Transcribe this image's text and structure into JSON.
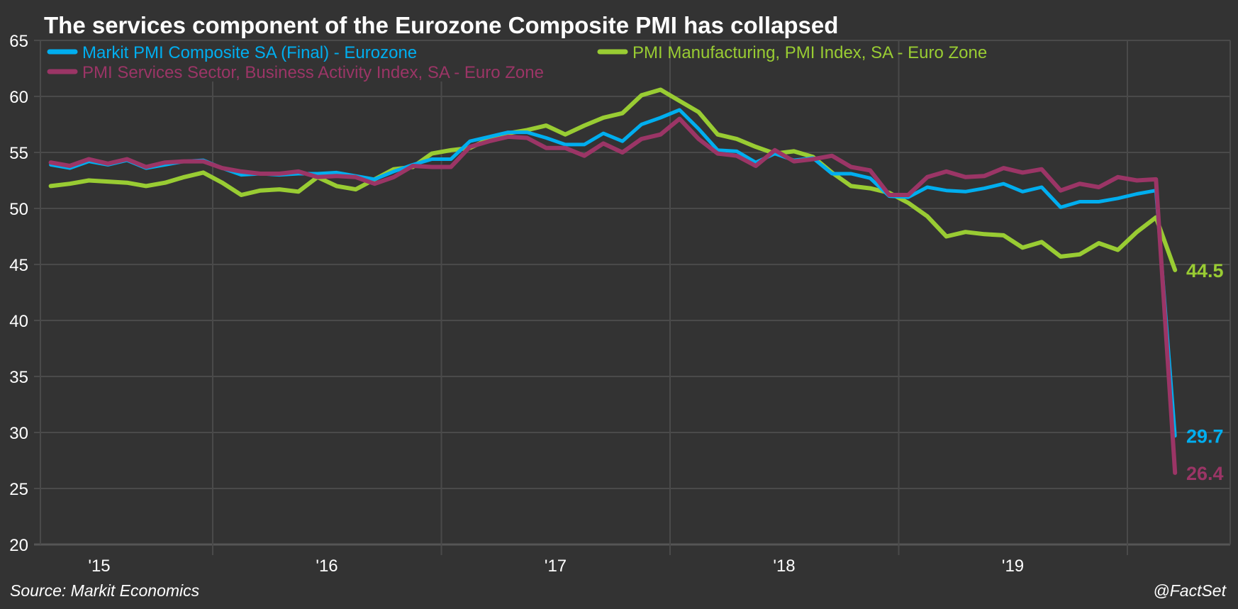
{
  "chart_data": {
    "type": "line",
    "title": "The services component of the Eurozone Composite PMI has collapsed",
    "xlabel": "",
    "ylabel": "",
    "ylim": [
      20,
      65
    ],
    "yticks": [
      20,
      25,
      30,
      35,
      40,
      45,
      50,
      55,
      60,
      65
    ],
    "ytick_labels": [
      "20",
      "25",
      "30",
      "35",
      "40",
      "45",
      "50",
      "55",
      "60",
      "65"
    ],
    "x_start": "2015-04",
    "x_end": "2020-03",
    "frequency": "monthly",
    "xtick_labels": [
      "'15",
      "'16",
      "'17",
      "'18",
      "'19"
    ],
    "grid": true,
    "legend_position": "top-left",
    "series": [
      {
        "name": "Markit PMI Composite SA (Final) - Eurozone",
        "color": "#00AEEF",
        "end_label": "29.7",
        "values": [
          53.9,
          53.6,
          54.2,
          53.9,
          54.3,
          53.6,
          53.9,
          54.2,
          54.3,
          53.6,
          53.0,
          53.1,
          53.0,
          53.1,
          53.1,
          53.2,
          52.9,
          52.6,
          53.3,
          53.9,
          54.4,
          54.4,
          56.0,
          56.4,
          56.8,
          56.8,
          56.3,
          55.7,
          55.7,
          56.7,
          56.0,
          57.5,
          58.1,
          58.8,
          57.1,
          55.2,
          55.1,
          54.1,
          54.9,
          54.3,
          54.5,
          53.1,
          53.1,
          52.7,
          51.1,
          51.0,
          51.9,
          51.6,
          51.5,
          51.8,
          52.2,
          51.5,
          51.9,
          50.1,
          50.6,
          50.6,
          50.9,
          51.3,
          51.6,
          29.7
        ]
      },
      {
        "name": "PMI Manufacturing, PMI Index, SA - Euro Zone",
        "color": "#99CC33",
        "end_label": "44.5",
        "values": [
          52.0,
          52.2,
          52.5,
          52.4,
          52.3,
          52.0,
          52.3,
          52.8,
          53.2,
          52.3,
          51.2,
          51.6,
          51.7,
          51.5,
          52.8,
          52.0,
          51.7,
          52.6,
          53.5,
          53.7,
          54.9,
          55.2,
          55.4,
          56.2,
          56.7,
          57.0,
          57.4,
          56.6,
          57.4,
          58.1,
          58.5,
          60.1,
          60.6,
          59.6,
          58.6,
          56.6,
          56.2,
          55.5,
          54.9,
          55.1,
          54.6,
          53.2,
          52.0,
          51.8,
          51.4,
          50.5,
          49.3,
          47.5,
          47.9,
          47.7,
          47.6,
          46.5,
          47.0,
          45.7,
          45.9,
          46.9,
          46.3,
          47.9,
          49.2,
          44.5
        ]
      },
      {
        "name": "PMI Services Sector, Business Activity Index, SA - Euro Zone",
        "color": "#9B3566",
        "end_label": "26.4",
        "values": [
          54.1,
          53.8,
          54.4,
          54.0,
          54.4,
          53.7,
          54.1,
          54.2,
          54.2,
          53.6,
          53.3,
          53.1,
          53.1,
          53.3,
          52.8,
          52.9,
          52.8,
          52.2,
          52.8,
          53.8,
          53.7,
          53.7,
          55.5,
          56.0,
          56.4,
          56.3,
          55.4,
          55.4,
          54.7,
          55.8,
          55.0,
          56.2,
          56.6,
          58.0,
          56.2,
          54.9,
          54.7,
          53.8,
          55.2,
          54.2,
          54.4,
          54.7,
          53.7,
          53.4,
          51.2,
          51.2,
          52.8,
          53.3,
          52.8,
          52.9,
          53.6,
          53.2,
          53.5,
          51.6,
          52.2,
          51.9,
          52.8,
          52.5,
          52.6,
          26.4
        ]
      }
    ],
    "source": "Source: Markit Economics",
    "credit": "@FactSet"
  }
}
